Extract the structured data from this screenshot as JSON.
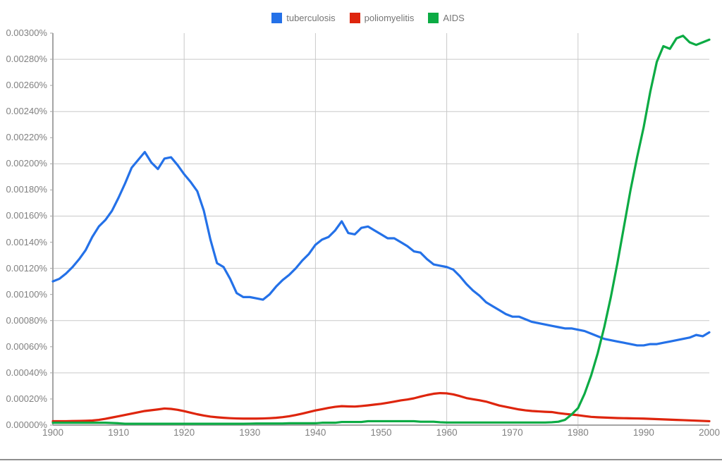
{
  "legend": {
    "items": [
      {
        "label": "tuberculosis",
        "color": "#2471e8"
      },
      {
        "label": "poliomyelitis",
        "color": "#de250d"
      },
      {
        "label": "AIDS",
        "color": "#0cab44"
      }
    ]
  },
  "chart_data": {
    "type": "line",
    "title": "",
    "xlabel": "",
    "ylabel": "",
    "unit": "%",
    "xlim": [
      1900,
      2000
    ],
    "ylim": [
      0,
      0.003
    ],
    "x_start": 1900,
    "x_step": 1,
    "legend_position": "top-center",
    "grid": {
      "y_values": [
        0.0004,
        0.0008,
        0.0012,
        0.0016,
        0.002,
        0.0024,
        0.0028
      ],
      "x_values": [
        1920,
        1940,
        1960,
        1980
      ]
    },
    "y_tick_labels": [
      "0.00300%",
      "0.00280%",
      "0.00260%",
      "0.00240%",
      "0.00220%",
      "0.00200%",
      "0.00180%",
      "0.00160%",
      "0.00140%",
      "0.00120%",
      "0.00100%",
      "0.00080%",
      "0.00060%",
      "0.00040%",
      "0.00020%",
      "0.00000%"
    ],
    "y_tick_values": [
      0.003,
      0.0028,
      0.0026,
      0.0024,
      0.0022,
      0.002,
      0.0018,
      0.0016,
      0.0014,
      0.0012,
      0.001,
      0.0008,
      0.0006,
      0.0004,
      0.0002,
      0.0
    ],
    "x_tick_labels": [
      "1900",
      "1910",
      "1920",
      "1930",
      "1940",
      "1950",
      "1960",
      "1970",
      "1980",
      "1990",
      "2000"
    ],
    "x_tick_values": [
      1900,
      1910,
      1920,
      1930,
      1940,
      1950,
      1960,
      1970,
      1980,
      1990,
      2000
    ],
    "colors": {
      "grid": "#c9c9c9",
      "axis": "#a5a5a5",
      "tick_text": "#818181",
      "legend_text": "#757575"
    },
    "series": [
      {
        "name": "tuberculosis",
        "color": "#2471e8",
        "values": [
          0.0011,
          0.00112,
          0.00116,
          0.00121,
          0.00127,
          0.00134,
          0.00144,
          0.00152,
          0.00157,
          0.00164,
          0.00174,
          0.00185,
          0.00197,
          0.00203,
          0.00209,
          0.00201,
          0.00196,
          0.00204,
          0.00205,
          0.00199,
          0.00192,
          0.00186,
          0.00179,
          0.00164,
          0.00142,
          0.00124,
          0.00121,
          0.00112,
          0.00101,
          0.00098,
          0.00098,
          0.00097,
          0.00096,
          0.001,
          0.00106,
          0.00111,
          0.00115,
          0.0012,
          0.00126,
          0.00131,
          0.00138,
          0.00142,
          0.00144,
          0.00149,
          0.00156,
          0.00147,
          0.00146,
          0.00151,
          0.00152,
          0.00149,
          0.00146,
          0.00143,
          0.00143,
          0.0014,
          0.00137,
          0.00133,
          0.00132,
          0.00127,
          0.00123,
          0.00122,
          0.00121,
          0.00119,
          0.00114,
          0.00108,
          0.00103,
          0.00099,
          0.00094,
          0.00091,
          0.00088,
          0.00085,
          0.00083,
          0.00083,
          0.00081,
          0.00079,
          0.00078,
          0.00077,
          0.00076,
          0.00075,
          0.00074,
          0.00074,
          0.00073,
          0.00072,
          0.0007,
          0.00068,
          0.00066,
          0.00065,
          0.00064,
          0.00063,
          0.00062,
          0.00061,
          0.00061,
          0.00062,
          0.00062,
          0.00063,
          0.00064,
          0.00065,
          0.00066,
          0.00067,
          0.00069,
          0.00068,
          0.00071
        ]
      },
      {
        "name": "poliomyelitis",
        "color": "#de250d",
        "values": [
          3e-05,
          3e-05,
          3e-05,
          3.1e-05,
          3.2e-05,
          3.3e-05,
          3.5e-05,
          4e-05,
          4.8e-05,
          5.8e-05,
          6.8e-05,
          7.8e-05,
          8.8e-05,
          9.8e-05,
          0.000108,
          0.000114,
          0.00012,
          0.000127,
          0.000124,
          0.000117,
          0.000107,
          9.5e-05,
          8.3e-05,
          7.3e-05,
          6.5e-05,
          6e-05,
          5.6e-05,
          5.3e-05,
          5.1e-05,
          5e-05,
          5e-05,
          5e-05,
          5.1e-05,
          5.3e-05,
          5.6e-05,
          6.1e-05,
          6.8e-05,
          7.7e-05,
          8.8e-05,
          0.0001,
          0.000112,
          0.000122,
          0.000132,
          0.00014,
          0.000145,
          0.000143,
          0.000142,
          0.000146,
          0.000151,
          0.000157,
          0.000163,
          0.000171,
          0.00018,
          0.000189,
          0.000196,
          0.000205,
          0.000218,
          0.00023,
          0.00024,
          0.000245,
          0.000243,
          0.000235,
          0.000222,
          0.000207,
          0.000198,
          0.00019,
          0.00018,
          0.000165,
          0.00015,
          0.00014,
          0.00013,
          0.00012,
          0.000113,
          0.000108,
          0.000105,
          0.000102,
          0.0001,
          9.2e-05,
          8.6e-05,
          8.1e-05,
          7.6e-05,
          6.9e-05,
          6.3e-05,
          6e-05,
          5.8e-05,
          5.6e-05,
          5.4e-05,
          5.3e-05,
          5.2e-05,
          5.1e-05,
          5e-05,
          4.8e-05,
          4.6e-05,
          4.4e-05,
          4.2e-05,
          4e-05,
          3.8e-05,
          3.6e-05,
          3.4e-05,
          3.2e-05,
          3e-05
        ]
      },
      {
        "name": "AIDS",
        "color": "#0cab44",
        "values": [
          1.8e-05,
          1.8e-05,
          1.8e-05,
          1.8e-05,
          1.8e-05,
          1.8e-05,
          1.8e-05,
          1.8e-05,
          1.8e-05,
          1.6e-05,
          1.4e-05,
          1e-05,
          1e-05,
          1e-05,
          1e-05,
          1e-05,
          1e-05,
          1e-05,
          1e-05,
          1e-05,
          1e-05,
          1e-05,
          1e-05,
          1e-05,
          1e-05,
          1e-05,
          1e-05,
          1e-05,
          1e-05,
          1e-05,
          1.1e-05,
          1.2e-05,
          1.2e-05,
          1.2e-05,
          1.2e-05,
          1.2e-05,
          1.4e-05,
          1.4e-05,
          1.4e-05,
          1.4e-05,
          1.4e-05,
          1.8e-05,
          1.8e-05,
          1.8e-05,
          2.4e-05,
          2.4e-05,
          2.4e-05,
          2.4e-05,
          3e-05,
          3e-05,
          3e-05,
          3e-05,
          3e-05,
          3e-05,
          3e-05,
          3e-05,
          2.6e-05,
          2.6e-05,
          2.6e-05,
          2.2e-05,
          2e-05,
          2e-05,
          2e-05,
          2e-05,
          2e-05,
          2e-05,
          2e-05,
          2e-05,
          2e-05,
          2e-05,
          2e-05,
          2e-05,
          2e-05,
          2e-05,
          2e-05,
          2e-05,
          2.2e-05,
          2.6e-05,
          4e-05,
          8e-05,
          0.00013,
          0.00024,
          0.00038,
          0.00055,
          0.00075,
          0.00098,
          0.00124,
          0.00152,
          0.0018,
          0.00205,
          0.00228,
          0.00255,
          0.00278,
          0.0029,
          0.00288,
          0.00296,
          0.00298,
          0.00293,
          0.00291,
          0.00293,
          0.00295
        ]
      }
    ]
  }
}
